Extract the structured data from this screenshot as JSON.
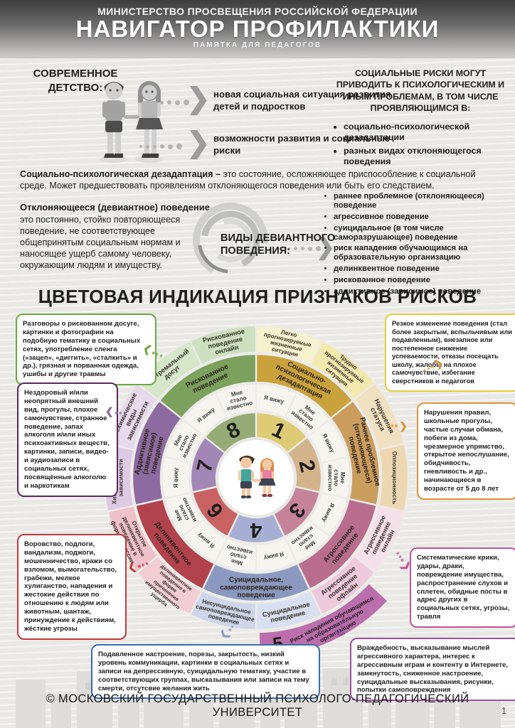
{
  "icons": {
    "chevron": "❯"
  },
  "header": {
    "ministry": "МИНИСТЕРСТВО ПРОСВЕЩЕНИЯ РОССИЙСКОЙ ФЕДЕРАЦИИ",
    "title": "НАВИГАТОР ПРОФИЛАКТИКИ",
    "subtitle": "ПАМЯТКА ДЛЯ ПЕДАГОГОВ"
  },
  "childhood": {
    "heading": "СОВРЕМЕННОЕ ДЕТСТВО:",
    "arrow1": "новая социальная ситуация развития детей и подростков",
    "arrow2": "возможности развития и социальные риски"
  },
  "social_risks": {
    "heading": "СОЦИАЛЬНЫЕ РИСКИ МОГУТ ПРИВОДИТЬ К ПСИХОЛОГИЧЕСКИМ И ИНЫМ ПРОБЛЕМАМ, В ТОМ ЧИСЛЕ ПРОЯВЛЯЮЩИМСЯ В:",
    "bullets": [
      "социально-психологической дезадаптации",
      "разных видах отклоняющегося поведения"
    ]
  },
  "desadaptation": {
    "lead": "Социально-психологическая дезадаптация –",
    "text": "это состояние, осложняющее приспособление к социальной среде. Может предшествовать проявлениям отклоняющегося поведения или быть его следствием."
  },
  "deviant": {
    "lead": "Отклоняющееся (девиантное) поведение –",
    "text": "это постоянно, стойко повторяющееся поведение, не соответствующее общепринятым социальным нормам и наносящее ущерб самому человеку, окружающим людям и имуществу.",
    "types_heading": "ВИДЫ ДЕВИАНТНОГО ПОВЕДЕНИЯ:",
    "types": [
      "раннее проблемное (отклоняющееся) поведение",
      "агрессивное поведение",
      "суицидальное (в том числе саморазрушающее) поведение",
      "риск нападения обучающимся на образовательную организацию",
      "делинквентное поведение",
      "рискованное поведение",
      "аддиктивное (зависимое) поведение"
    ]
  },
  "risk_section_title": "ЦВЕТОВАЯ ИНДИКАЦИЯ ПРИЗНАКОВ РИСКОВ",
  "callouts": {
    "risky_leisure": {
      "color": "#6aaa3c",
      "text": "Разговоры о рискованном досуге, картинки и фотографии на подобную тематику в социальных сетях, употребление сленга («зацеп», «диггить», «сталкить» и др.), грязная и порванная одежда, ушибы и другие травмы"
    },
    "behavior_change": {
      "color": "#e2ce3b",
      "text": "Резкое изменение поведения (стал более закрытым, вспыльчивым или подавленным), внезапное или постепенное снижение успеваемости, отказы посещать школу, жалобы на плохое самочувствие, избегание сверстников и педагогов"
    },
    "addiction_signs": {
      "color": "#59295b",
      "text": "Нездоровый и/или неопрятный внешний вид, прогулы, плохое самочувствие, странное поведение, запах алкоголя и/или иных психоактивных веществ, картинки, записи, видео- и аудиозаписи в социальных сетях, посвящённые алкоголю и наркотикам"
    },
    "status_violations": {
      "color": "#d9953b",
      "text": "Нарушения правил, школьные прогулы, частые случаи обмана, побеги из дома, чрезмерное упрямство, открытое непослушание, обидчивость, гневливость и др., начинающиеся в возрасте от 5 до 8 лет"
    },
    "delinquent_signs": {
      "color": "#bf3a3a",
      "text": "Воровство, подлоги, вандализм, поджоги, мошенничество, кражи со взломом, вымогательство, грабежи, мелкое хулиганство, нападения и жестокие действия по отношению к людям или животным, шантаж, принуждение к действиям, жёсткие угрозы"
    },
    "aggression_signs": {
      "color": "#c0559a",
      "text": "Систематические крики, удары, драки, повреждение имущества, распространение слухов и сплетен, обидные посты в адрес других в социальных сетях, угрозы, травля"
    },
    "suicidal_signs": {
      "color": "#3a6cae",
      "text": "Подавленное настроение, порезы, закрытость, низкий уровень коммуникации, картинки в социальных сетях и записи на депрессивную, суицидальную тематику, участие в соответствующих группах, высказывания или записи на тему смерти, отсутсвие желания жить"
    },
    "attack_risk_signs": {
      "color": "#98519b",
      "text": "Враждебность, высказывание мыслей агрессивного характера, интерес к агрессивным играм и контенту в Интернете, замкнутость, сниженное настроение, суицидальные высказывания, рисунки, попытки самоповреждения"
    }
  },
  "wheel": {
    "see_labels": [
      "Я вижу",
      "Мне стало известно"
    ],
    "see_cell_color": "#f6f4ee",
    "sectors": [
      {
        "num": "1",
        "name": "Социально-психологическая дезадаптация",
        "color": "#c9a23c",
        "num_color": "#ddcb74",
        "sub_colors": [
          "#f7f1cd",
          "#f3e9ae"
        ],
        "subcats": [
          "Легко прогнозируемые жизненные ситуации",
          "Трудно прогнозируемые жизненные ситуации"
        ]
      },
      {
        "num": "2",
        "name": "Раннее проблемное (отклоняющееся) поведение",
        "color": "#cb9d5d",
        "num_color": "#d3b38a",
        "sub_colors": [
          "#f0dfc1",
          "#ecd7b2"
        ],
        "subcats": [
          "Нарушения статуса",
          "Оппозиционность"
        ]
      },
      {
        "num": "3",
        "name": "Агрессивное поведение",
        "color": "#b96d8d",
        "num_color": "#c5839a",
        "sub_colors": [
          "#f5dfe9",
          "#eec9db"
        ],
        "subcats": [
          "Агрессивное поведение онлайн",
          "Агрессивное поведение офлайн"
        ]
      },
      {
        "num": "4",
        "name": "Суицидальное, самоповреждающее поведение",
        "color": "#8b99c0",
        "num_color": "#a7aed3",
        "sub_colors": [
          "#d8dff0",
          "#cdd5ea"
        ],
        "subcats": [
          "Суицидальное поведение",
          "Несуицидальное самоповреждающее поведение"
        ]
      },
      {
        "num": "6",
        "name": "Делинквентное поведение",
        "color": "#b2434c",
        "num_color": "#c96262",
        "sub_colors": [
          "#f2cdd3",
          "#eec0c9"
        ],
        "subcats": [
          "Скрытое делинквентное поведение в форме причинения имущественного ущерба",
          "Открытое делинквентное поведение в форме агрессии"
        ]
      },
      {
        "num": "7",
        "name": "Аддиктивное (зависимое) поведение",
        "color": "#8d6aa0",
        "num_color": "#a286b5",
        "sub_colors": [
          "#ddc9e4",
          "#e6d9ec"
        ],
        "subcats": [
          "Химические виды зависимости",
          "Нехимические виды зависимости"
        ]
      },
      {
        "num": "8",
        "name": "Рискованное поведение",
        "color": "#7ba15c",
        "num_color": "#94ab75",
        "sub_colors": [
          "#d6e6c9",
          "#cce0bf"
        ],
        "subcats": [
          "Экстремальный досуг",
          "Рискованное поведение онлайн"
        ]
      }
    ],
    "outer_wedge": {
      "num": "5",
      "label": "Риск нападения обучающимся на образовательную организацию",
      "color": "#ba6fac"
    }
  },
  "footer": {
    "copyright": "© МОСКОВСКИЙ ГОСУДАРСТВЕННЫЙ ПСИХОЛОГО-ПЕДАГОГИЧЕСКИЙ УНИВЕРСИТЕТ",
    "page": "1"
  }
}
